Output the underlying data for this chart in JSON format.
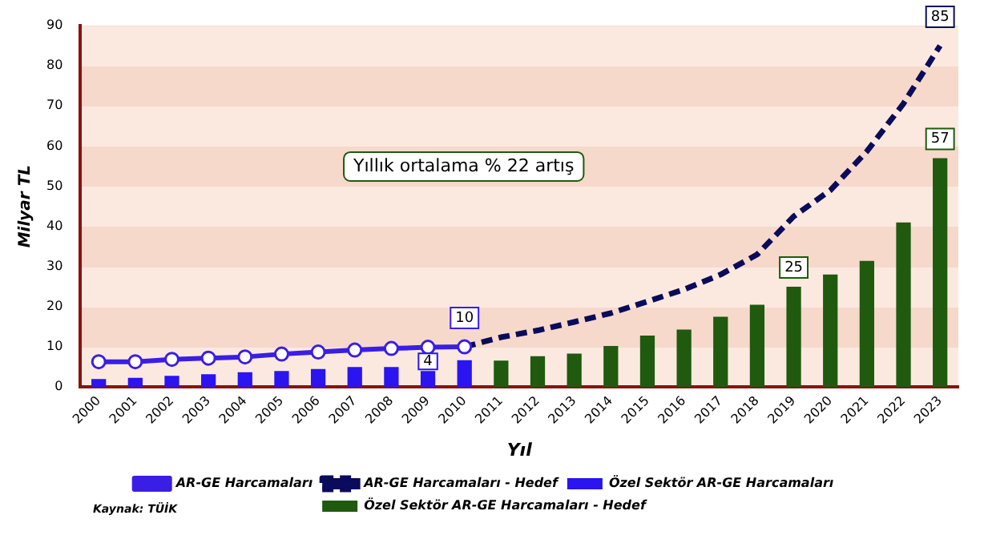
{
  "chart_data": {
    "type": "bar",
    "ylabel": "Milyar TL",
    "xlabel": "Yıl",
    "categories": [
      "2000",
      "2001",
      "2002",
      "2003",
      "2004",
      "2005",
      "2006",
      "2007",
      "2008",
      "2009",
      "2010",
      "2011",
      "2012",
      "2013",
      "2014",
      "2015",
      "2016",
      "2017",
      "2018",
      "2019",
      "2020",
      "2021",
      "2022",
      "2023"
    ],
    "series": [
      {
        "name": "AR-GE Harcamaları",
        "type": "line",
        "color": "#3a1ee6",
        "marker": "circle",
        "line_style": "solid",
        "values": [
          6.3,
          6.3,
          6.9,
          7.2,
          7.5,
          8.2,
          8.7,
          9.2,
          9.6,
          9.9,
          10,
          null,
          null,
          null,
          null,
          null,
          null,
          null,
          null,
          null,
          null,
          null,
          null,
          null
        ],
        "value_labels": [
          null,
          null,
          null,
          null,
          null,
          null,
          null,
          null,
          null,
          null,
          "10",
          null,
          null,
          null,
          null,
          null,
          null,
          null,
          null,
          null,
          null,
          null,
          null,
          null
        ]
      },
      {
        "name": "AR-GE Harcamaları - Hedef",
        "type": "line",
        "color": "#0b0b5c",
        "marker": "none",
        "line_style": "dashed",
        "values": [
          null,
          null,
          null,
          null,
          null,
          null,
          null,
          null,
          null,
          null,
          10,
          12.4,
          14.1,
          16.2,
          18.4,
          21.3,
          24.3,
          28,
          33,
          42.5,
          49,
          58.7,
          70.6,
          85
        ],
        "value_labels": [
          null,
          null,
          null,
          null,
          null,
          null,
          null,
          null,
          null,
          null,
          null,
          null,
          null,
          null,
          null,
          null,
          null,
          null,
          null,
          null,
          null,
          null,
          null,
          "85"
        ]
      },
      {
        "name": "Özel Sektör AR-GE Harcamaları",
        "type": "bar",
        "color": "#2a14f0",
        "values": [
          2,
          2.3,
          2.8,
          3.2,
          3.7,
          4,
          4.5,
          5,
          5,
          4,
          6.7,
          null,
          null,
          null,
          null,
          null,
          null,
          null,
          null,
          null,
          null,
          null,
          null,
          null
        ],
        "value_labels": [
          null,
          null,
          null,
          null,
          null,
          null,
          null,
          null,
          null,
          "4",
          null,
          null,
          null,
          null,
          null,
          null,
          null,
          null,
          null,
          null,
          null,
          null,
          null,
          null
        ]
      },
      {
        "name": "Özel Sektör AR-GE Harcamaları - Hedef",
        "type": "bar",
        "color": "#1f5a0e",
        "values": [
          null,
          null,
          null,
          null,
          null,
          null,
          null,
          null,
          null,
          null,
          null,
          6.6,
          7.7,
          8.3,
          10.2,
          12.8,
          14.3,
          17.5,
          20.5,
          25,
          28,
          31.4,
          41,
          57
        ],
        "value_labels": [
          null,
          null,
          null,
          null,
          null,
          null,
          null,
          null,
          null,
          null,
          null,
          null,
          null,
          null,
          null,
          null,
          null,
          null,
          null,
          "25",
          null,
          null,
          null,
          "57"
        ]
      }
    ],
    "ylim": [
      0,
      90
    ],
    "yticks": [
      0,
      10,
      20,
      30,
      40,
      50,
      60,
      70,
      80,
      90
    ],
    "legend": "bottom",
    "annotations": [
      "Yıllık ortalama % 22 artış",
      "Kaynak: TÜİK"
    ]
  }
}
